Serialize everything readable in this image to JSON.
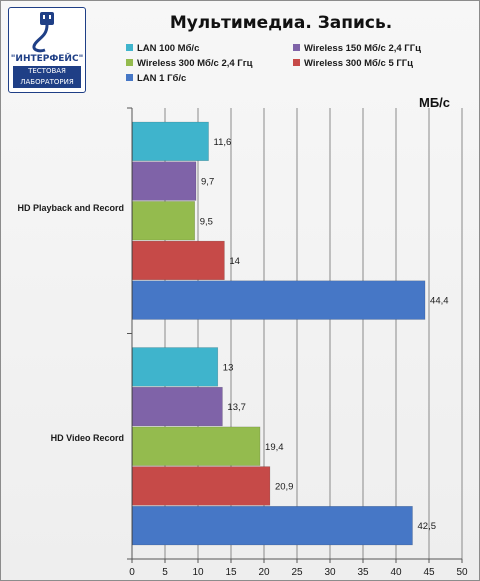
{
  "logo": {
    "brand": "\"ИНТЕРФЕЙС\"",
    "subtitle_line1": "ТЕСТОВАЯ",
    "subtitle_line2": "ЛАБОРАТОРИЯ"
  },
  "chart_data": {
    "type": "bar",
    "orientation": "horizontal",
    "title": "Мультимедиа. Запись.",
    "unit_label": "МБ/с",
    "categories": [
      "HD Playback and Record",
      "HD Video Record"
    ],
    "series": [
      {
        "name": "LAN 100 Мб/с",
        "color": "#3fb4cc",
        "values": [
          11.6,
          13
        ]
      },
      {
        "name": "Wireless 150 Мб/с  2,4 ГГц",
        "color": "#7f63a8",
        "values": [
          9.7,
          13.7
        ]
      },
      {
        "name": "Wireless 300 Мб/с  2,4 Ггц",
        "color": "#94bb4e",
        "values": [
          9.5,
          19.4
        ]
      },
      {
        "name": "Wireless 300 Мб/с  5 ГГц",
        "color": "#c64a48",
        "values": [
          14,
          20.9
        ]
      },
      {
        "name": "LAN 1 Гб/с",
        "color": "#4677c6",
        "values": [
          44.4,
          42.5
        ]
      }
    ],
    "value_labels": [
      [
        "11,6",
        "9,7",
        "9,5",
        "14",
        "44,4"
      ],
      [
        "13",
        "13,7",
        "19,4",
        "20,9",
        "42,5"
      ]
    ],
    "xlim": [
      0,
      50
    ],
    "xticks": [
      "0",
      "5",
      "10",
      "15",
      "20",
      "25",
      "30",
      "35",
      "40",
      "45",
      "50"
    ],
    "grid": true,
    "legend_position": "top"
  }
}
